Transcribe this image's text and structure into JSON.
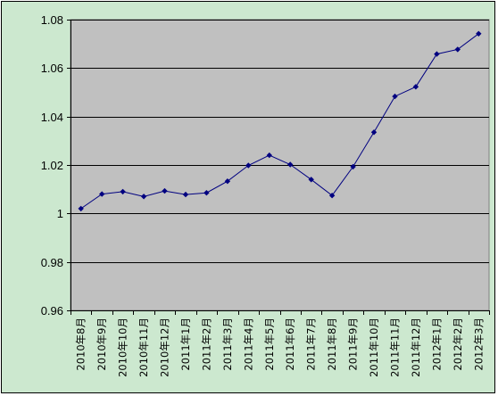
{
  "chart_data": {
    "type": "line",
    "title": "",
    "xlabel": "",
    "ylabel": "",
    "ylim": [
      0.96,
      1.08
    ],
    "yticks": [
      "0.96",
      "0.98",
      "1",
      "1.02",
      "1.04",
      "1.06",
      "1.08"
    ],
    "grid": true,
    "legend": "none",
    "categories": [
      "2010年8月",
      "2010年9月",
      "2010年10月",
      "2010年11月",
      "2010年12月",
      "2011年1月",
      "2011年2月",
      "2011年3月",
      "2011年4月",
      "2011年5月",
      "2011年6月",
      "2011年7月",
      "2011年8月",
      "2011年9月",
      "2011年10月",
      "2011年11月",
      "2011年12月",
      "2012年1月",
      "2012年2月",
      "2012年3月"
    ],
    "series": [
      {
        "values": [
          1.002,
          1.008,
          1.009,
          1.007,
          1.0093,
          1.0078,
          1.0085,
          1.0133,
          1.0198,
          1.024,
          1.0202,
          1.014,
          1.0074,
          1.0193,
          1.0335,
          1.0483,
          1.0523,
          1.0658,
          1.0677,
          1.0742
        ]
      }
    ],
    "colors": {
      "background": "#cce8cf",
      "plot_area": "#c0c0c0",
      "line": "#000080",
      "gridline": "#000000"
    }
  }
}
